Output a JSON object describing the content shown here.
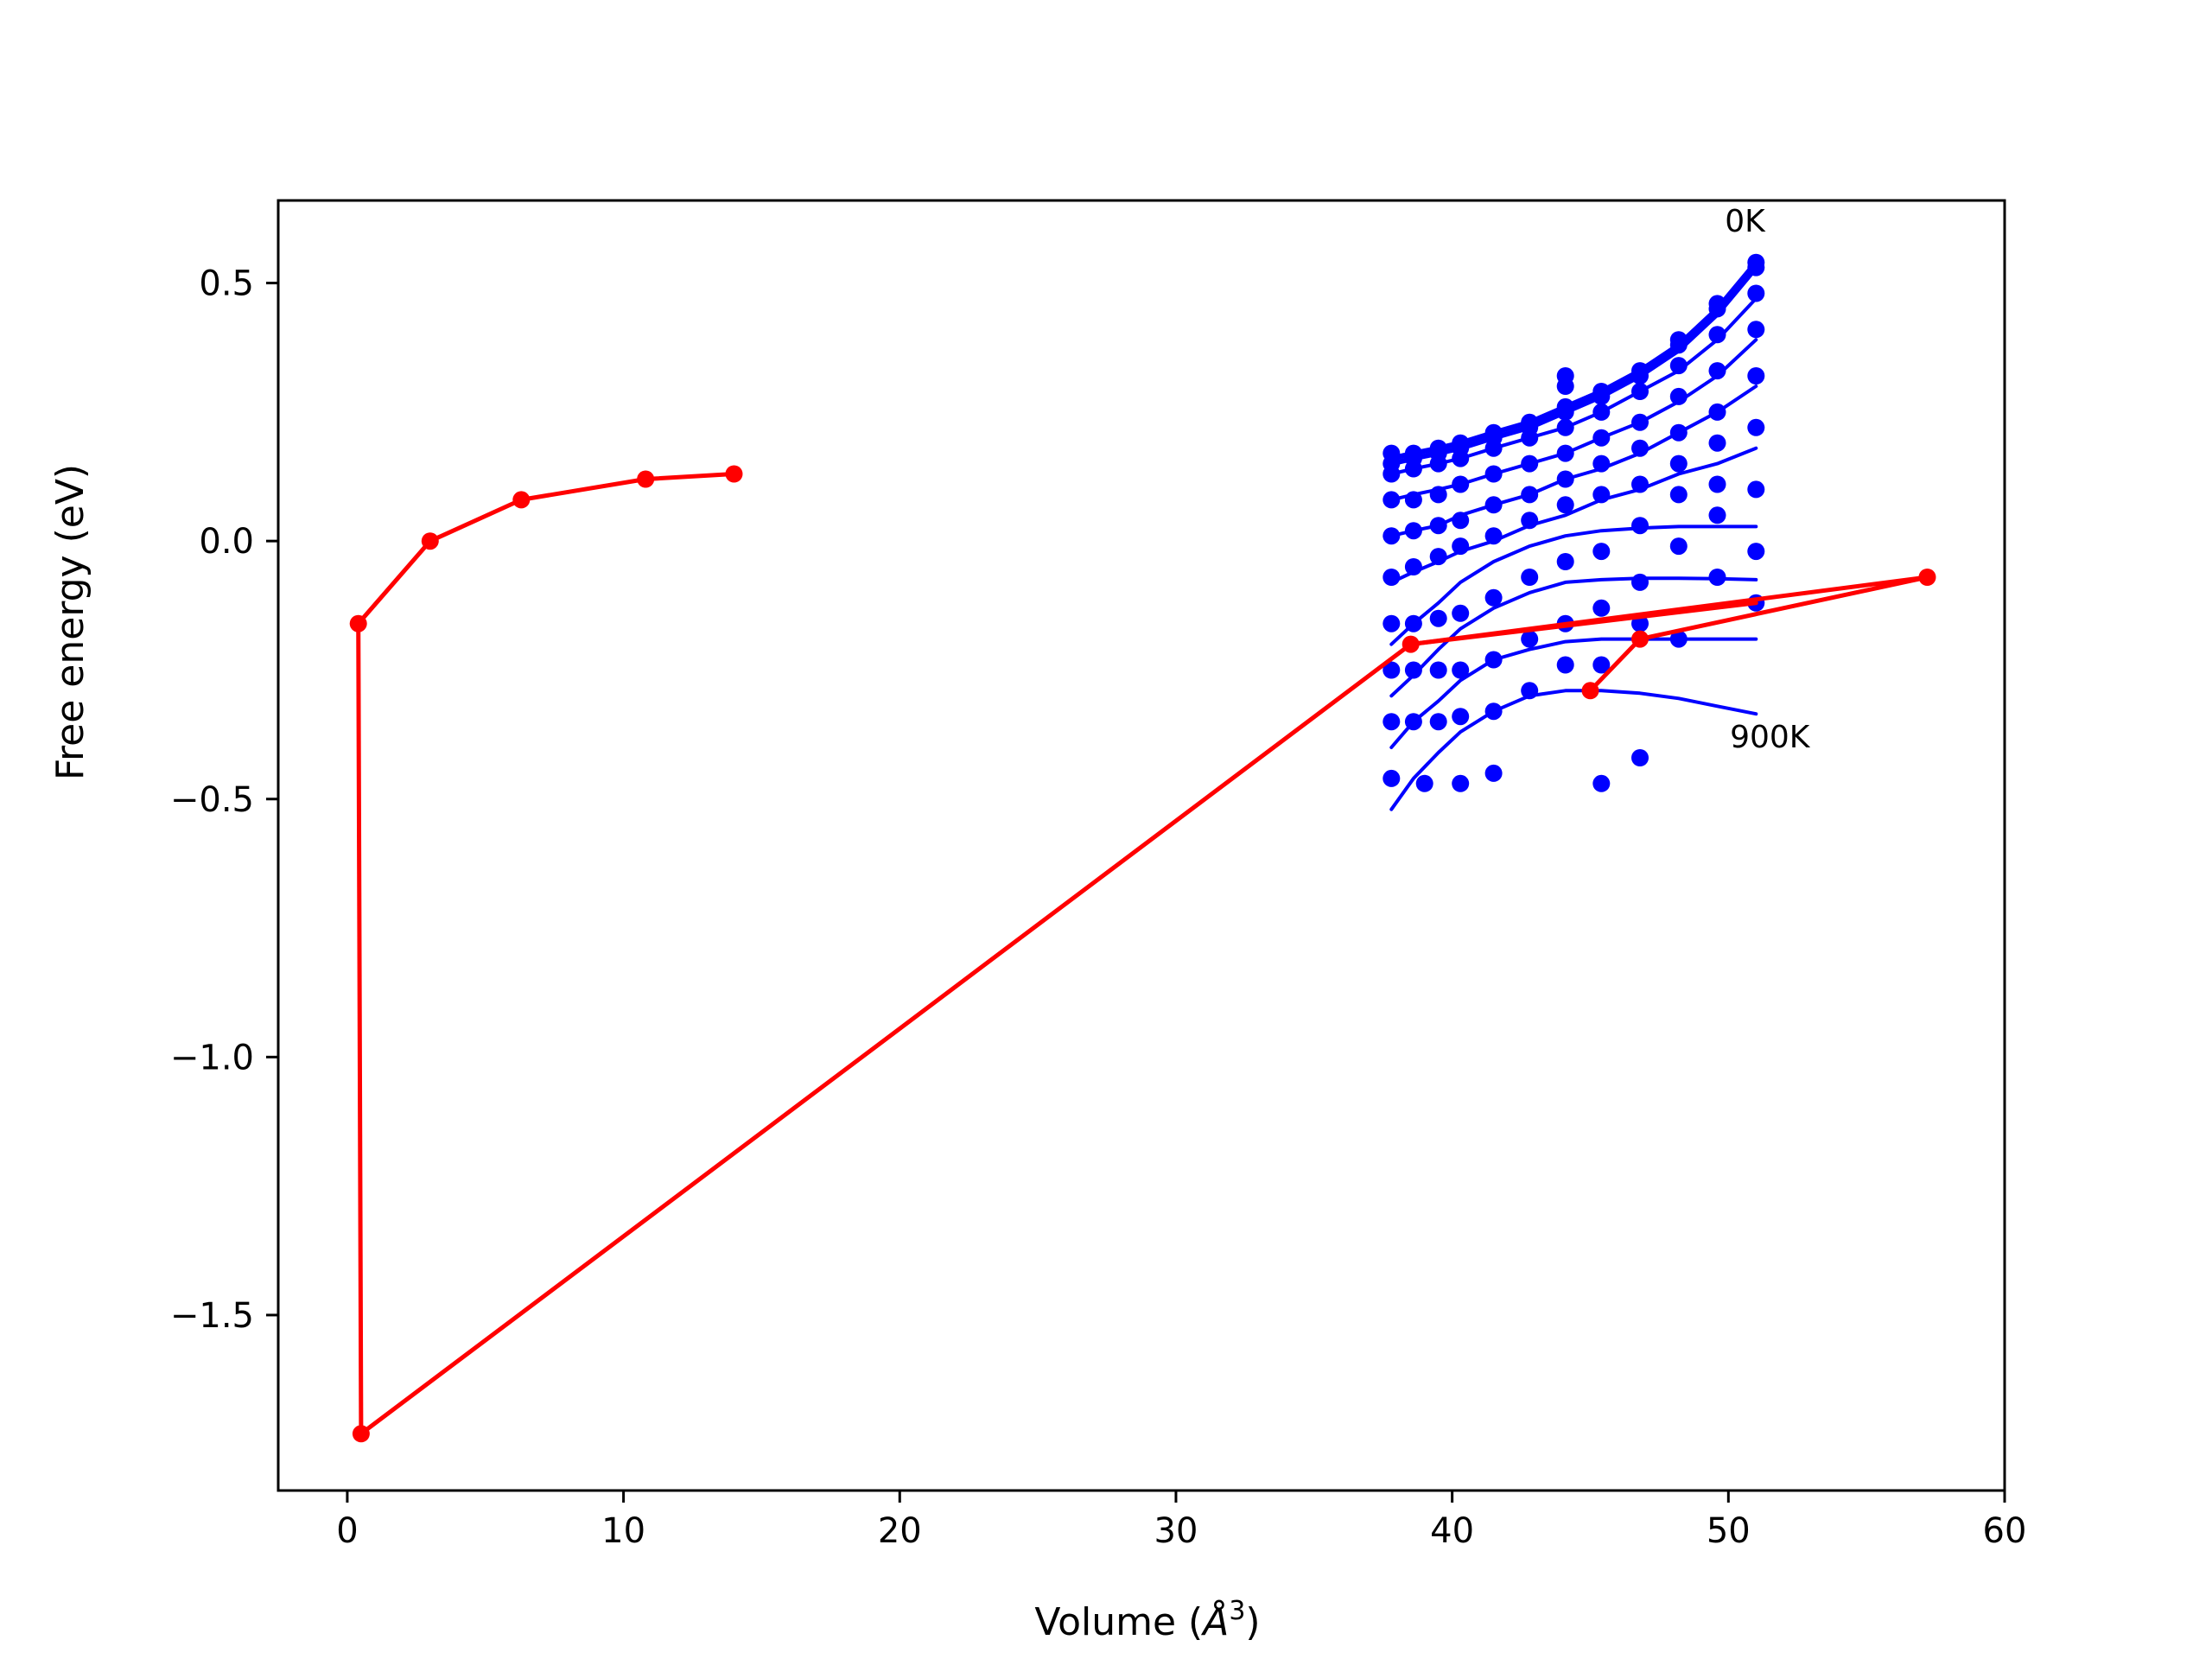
{
  "chart_data": {
    "type": "line",
    "title": "",
    "xlabel_main": "Volume (",
    "xlabel_sym": "Å",
    "xlabel_sup": "3",
    "xlabel_end": ")",
    "ylabel": "Free energy (eV)",
    "xlim": [
      -2.5,
      60
    ],
    "ylim": [
      -1.84,
      0.66
    ],
    "x_ticks": [
      0,
      10,
      20,
      30,
      40,
      50,
      60
    ],
    "y_ticks": [
      0.5,
      0.0,
      -0.5,
      -1.0,
      -1.5
    ],
    "x_tick_labels": [
      "0",
      "10",
      "20",
      "30",
      "40",
      "50",
      "60"
    ],
    "y_tick_labels": [
      "0.5",
      "0.0",
      "−0.5",
      "−1.0",
      "−1.5"
    ],
    "grid": false,
    "colors": {
      "fits": "#0000ff",
      "path": "#ff0000"
    },
    "annotations": [
      {
        "text": "0K",
        "x": 50.6,
        "y": 0.6
      },
      {
        "text": "900K",
        "x": 51.5,
        "y": -0.4
      }
    ],
    "volumes": [
      37.8,
      38.6,
      39.5,
      40.3,
      41.5,
      42.8,
      44.1,
      45.4,
      46.8,
      48.2,
      49.6,
      51.0
    ],
    "fit_curves": [
      {
        "x": [
          37.8,
          38.6,
          39.5,
          40.3,
          41.5,
          42.8,
          44.1,
          45.4,
          46.8,
          48.2,
          49.6,
          51.0
        ],
        "y": [
          0.16,
          0.17,
          0.18,
          0.19,
          0.21,
          0.23,
          0.26,
          0.29,
          0.33,
          0.38,
          0.45,
          0.54
        ]
      },
      {
        "x": [
          37.8,
          38.6,
          39.5,
          40.3,
          41.5,
          42.8,
          44.1,
          45.4,
          46.8,
          48.2,
          49.6,
          51.0
        ],
        "y": [
          0.15,
          0.16,
          0.17,
          0.18,
          0.2,
          0.22,
          0.25,
          0.28,
          0.32,
          0.37,
          0.44,
          0.53
        ]
      },
      {
        "x": [
          37.8,
          38.6,
          39.5,
          40.3,
          41.5,
          42.8,
          44.1,
          45.4,
          46.8,
          48.2,
          49.6,
          51.0
        ],
        "y": [
          0.13,
          0.14,
          0.15,
          0.16,
          0.18,
          0.2,
          0.22,
          0.25,
          0.29,
          0.33,
          0.39,
          0.47
        ]
      },
      {
        "x": [
          37.8,
          38.6,
          39.5,
          40.3,
          41.5,
          42.8,
          44.1,
          45.4,
          46.8,
          48.2,
          49.6,
          51.0
        ],
        "y": [
          0.08,
          0.09,
          0.1,
          0.11,
          0.13,
          0.15,
          0.17,
          0.2,
          0.23,
          0.27,
          0.32,
          0.39
        ]
      },
      {
        "x": [
          37.8,
          38.6,
          39.5,
          40.3,
          41.5,
          42.8,
          44.1,
          45.4,
          46.8,
          48.2,
          49.6,
          51.0
        ],
        "y": [
          0.01,
          0.02,
          0.03,
          0.05,
          0.07,
          0.09,
          0.12,
          0.14,
          0.17,
          0.21,
          0.25,
          0.3
        ]
      },
      {
        "x": [
          37.8,
          38.6,
          39.5,
          40.3,
          41.5,
          42.8,
          44.1,
          45.4,
          46.8,
          48.2,
          49.6,
          51.0
        ],
        "y": [
          -0.08,
          -0.06,
          -0.04,
          -0.02,
          0.0,
          0.03,
          0.05,
          0.08,
          0.1,
          0.13,
          0.15,
          0.18
        ]
      },
      {
        "x": [
          37.8,
          38.6,
          39.5,
          40.3,
          41.5,
          42.8,
          44.1,
          45.4,
          46.8,
          48.2,
          49.6,
          51.0
        ],
        "y": [
          -0.2,
          -0.16,
          -0.12,
          -0.08,
          -0.04,
          -0.01,
          0.01,
          0.02,
          0.025,
          0.028,
          0.028,
          0.028
        ]
      },
      {
        "x": [
          37.8,
          38.6,
          39.5,
          40.3,
          41.5,
          42.8,
          44.1,
          45.4,
          46.8,
          48.2,
          49.6,
          51.0
        ],
        "y": [
          -0.3,
          -0.26,
          -0.21,
          -0.17,
          -0.13,
          -0.1,
          -0.08,
          -0.075,
          -0.072,
          -0.072,
          -0.073,
          -0.075
        ]
      },
      {
        "x": [
          37.8,
          38.6,
          39.5,
          40.3,
          41.5,
          42.8,
          44.1,
          45.4,
          46.8,
          48.2,
          49.6,
          51.0
        ],
        "y": [
          -0.4,
          -0.35,
          -0.31,
          -0.27,
          -0.23,
          -0.21,
          -0.195,
          -0.19,
          -0.19,
          -0.19,
          -0.19,
          -0.19
        ]
      },
      {
        "x": [
          37.8,
          38.6,
          39.5,
          40.3,
          41.5,
          42.8,
          44.1,
          45.4,
          46.8,
          48.2,
          49.6,
          51.0
        ],
        "y": [
          -0.52,
          -0.46,
          -0.41,
          -0.37,
          -0.33,
          -0.3,
          -0.29,
          -0.29,
          -0.295,
          -0.305,
          -0.32,
          -0.335
        ]
      }
    ],
    "dots": {
      "x": [
        37.8,
        38.6,
        39.5,
        40.3,
        41.5,
        42.8,
        44.1,
        45.4,
        46.8,
        48.2,
        49.6,
        51.0,
        37.8,
        38.6,
        39.5,
        40.3,
        41.5,
        42.8,
        44.1,
        45.4,
        46.8,
        48.2,
        49.6,
        51.0,
        37.8,
        38.6,
        39.5,
        40.3,
        41.5,
        42.8,
        44.1,
        45.4,
        46.8,
        48.2,
        49.6,
        51.0,
        37.8,
        38.6,
        39.5,
        40.3,
        41.5,
        42.8,
        44.1,
        45.4,
        46.8,
        48.2,
        49.6,
        51.0,
        37.8,
        38.6,
        39.5,
        40.3,
        41.5,
        42.8,
        44.1,
        45.4,
        46.8,
        48.2,
        49.6,
        51.0,
        37.8,
        38.6,
        39.5,
        40.3,
        41.5,
        42.8,
        44.1,
        45.4,
        46.8,
        48.2,
        49.6,
        51.0,
        37.8,
        38.6,
        39.5,
        40.3,
        41.5,
        42.8,
        44.1,
        45.4,
        46.8,
        48.2,
        49.6,
        51.0,
        37.8,
        38.6,
        39.5,
        40.3,
        41.5,
        42.8,
        44.1,
        45.4,
        46.8,
        48.2,
        49.6,
        51.0,
        37.8,
        38.6,
        39.5,
        40.3,
        41.5,
        42.8,
        44.1,
        45.4,
        46.8,
        48.2,
        49.6,
        51.0,
        37.8,
        39.0,
        40.3,
        41.5,
        45.4,
        46.8,
        44.1,
        44.1
      ],
      "y": [
        0.17,
        0.17,
        0.18,
        0.19,
        0.21,
        0.23,
        0.26,
        0.29,
        0.33,
        0.39,
        0.46,
        0.54,
        0.15,
        0.16,
        0.17,
        0.18,
        0.2,
        0.22,
        0.25,
        0.28,
        0.32,
        0.38,
        0.45,
        0.53,
        0.13,
        0.14,
        0.15,
        0.16,
        0.18,
        0.2,
        0.22,
        0.25,
        0.29,
        0.34,
        0.4,
        0.48,
        0.08,
        0.08,
        0.09,
        0.11,
        0.13,
        0.15,
        0.17,
        0.2,
        0.23,
        0.28,
        0.33,
        0.41,
        0.01,
        0.02,
        0.03,
        0.04,
        0.07,
        0.09,
        0.12,
        0.15,
        0.18,
        0.21,
        0.25,
        0.32,
        -0.07,
        -0.05,
        -0.03,
        -0.01,
        0.01,
        0.04,
        0.07,
        0.09,
        0.11,
        0.15,
        0.19,
        0.22,
        -0.16,
        -0.16,
        -0.15,
        -0.14,
        -0.11,
        -0.07,
        -0.04,
        -0.02,
        0.03,
        0.09,
        0.11,
        0.1,
        -0.25,
        -0.25,
        -0.25,
        -0.25,
        -0.23,
        -0.19,
        -0.16,
        -0.13,
        -0.08,
        -0.01,
        0.05,
        -0.02,
        -0.35,
        -0.35,
        -0.35,
        -0.34,
        -0.33,
        -0.29,
        -0.24,
        -0.24,
        -0.16,
        -0.19,
        -0.07,
        -0.12,
        -0.46,
        -0.47,
        -0.47,
        -0.45,
        -0.47,
        -0.42,
        0.3,
        0.32
      ],
      "y_alt": []
    },
    "path_segments": [
      {
        "name": "",
        "x": [
          14.0,
          10.8,
          6.3,
          3.0,
          0.4,
          0.5,
          38.5,
          57.2,
          46.8,
          45.0
        ],
        "y": [
          0.13,
          0.12,
          0.08,
          0.0,
          -0.16,
          -1.73,
          -0.2,
          -0.07,
          -0.19,
          -0.29
        ]
      },
      {
        "name": "",
        "x": [
          38.5,
          51.0
        ],
        "y": [
          -0.2,
          -0.12
        ]
      }
    ],
    "path_markers": {
      "x": [
        14.0,
        10.8,
        6.3,
        3.0,
        0.4,
        0.5,
        38.5,
        57.2,
        46.8,
        45.0
      ],
      "y": [
        0.13,
        0.12,
        0.08,
        0.0,
        -0.16,
        -1.73,
        -0.2,
        -0.07,
        -0.19,
        -0.29
      ]
    }
  }
}
